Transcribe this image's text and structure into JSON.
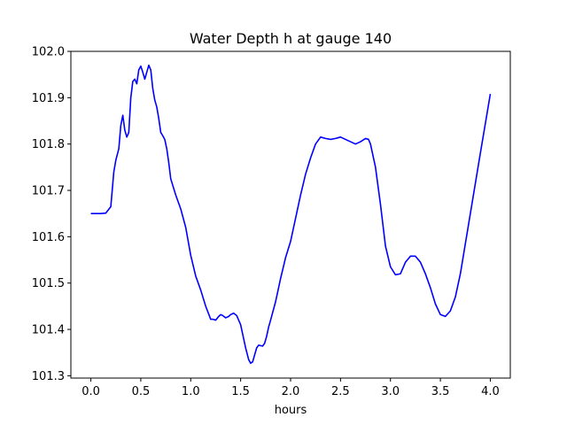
{
  "chart_data": {
    "type": "line",
    "title": "Water Depth h at gauge 140",
    "xlabel": "hours",
    "ylabel": "",
    "xlim": [
      -0.2,
      4.2
    ],
    "ylim": [
      101.295,
      102.0
    ],
    "xticks": [
      "0.0",
      "0.5",
      "1.0",
      "1.5",
      "2.0",
      "2.5",
      "3.0",
      "3.5",
      "4.0"
    ],
    "yticks": [
      "101.3",
      "101.4",
      "101.5",
      "101.6",
      "101.7",
      "101.8",
      "101.9",
      "102.0"
    ],
    "grid": false,
    "series": [
      {
        "color": "#0000ff",
        "x": [
          0.0,
          0.05,
          0.1,
          0.15,
          0.2,
          0.23,
          0.25,
          0.28,
          0.3,
          0.32,
          0.34,
          0.36,
          0.38,
          0.4,
          0.42,
          0.44,
          0.46,
          0.48,
          0.5,
          0.52,
          0.54,
          0.56,
          0.58,
          0.6,
          0.62,
          0.64,
          0.66,
          0.68,
          0.7,
          0.72,
          0.74,
          0.76,
          0.78,
          0.8,
          0.85,
          0.9,
          0.95,
          1.0,
          1.05,
          1.1,
          1.15,
          1.2,
          1.22,
          1.25,
          1.28,
          1.3,
          1.32,
          1.35,
          1.38,
          1.4,
          1.43,
          1.46,
          1.5,
          1.52,
          1.55,
          1.58,
          1.6,
          1.62,
          1.64,
          1.66,
          1.68,
          1.7,
          1.72,
          1.74,
          1.76,
          1.78,
          1.8,
          1.85,
          1.9,
          1.95,
          2.0,
          2.05,
          2.1,
          2.15,
          2.2,
          2.25,
          2.3,
          2.35,
          2.4,
          2.45,
          2.5,
          2.55,
          2.6,
          2.65,
          2.7,
          2.75,
          2.78,
          2.8,
          2.85,
          2.9,
          2.95,
          3.0,
          3.05,
          3.1,
          3.15,
          3.2,
          3.25,
          3.3,
          3.35,
          3.4,
          3.45,
          3.5,
          3.55,
          3.6,
          3.65,
          3.7,
          3.8,
          3.9,
          4.0
        ],
        "y": [
          101.65,
          101.65,
          101.65,
          101.651,
          101.665,
          101.74,
          101.765,
          101.79,
          101.84,
          101.862,
          101.83,
          101.815,
          101.825,
          101.9,
          101.935,
          101.94,
          101.93,
          101.96,
          101.968,
          101.955,
          101.94,
          101.955,
          101.97,
          101.96,
          101.92,
          101.895,
          101.88,
          101.855,
          101.825,
          101.818,
          101.81,
          101.79,
          101.76,
          101.725,
          101.69,
          101.66,
          101.62,
          101.56,
          101.515,
          101.485,
          101.45,
          101.422,
          101.422,
          101.42,
          101.428,
          101.432,
          101.43,
          101.425,
          101.428,
          101.432,
          101.435,
          101.43,
          101.41,
          101.39,
          101.36,
          101.335,
          101.327,
          101.33,
          101.345,
          101.36,
          101.366,
          101.365,
          101.364,
          101.37,
          101.385,
          101.405,
          101.42,
          101.46,
          101.51,
          101.555,
          101.59,
          101.64,
          101.69,
          101.735,
          101.77,
          101.8,
          101.815,
          101.812,
          101.81,
          101.812,
          101.815,
          101.81,
          101.805,
          101.8,
          101.805,
          101.812,
          101.81,
          101.8,
          101.75,
          101.67,
          101.58,
          101.535,
          101.518,
          101.52,
          101.545,
          101.558,
          101.558,
          101.545,
          101.52,
          101.49,
          101.455,
          101.432,
          101.428,
          101.44,
          101.47,
          101.52,
          101.65,
          101.78,
          101.908
        ]
      }
    ]
  }
}
